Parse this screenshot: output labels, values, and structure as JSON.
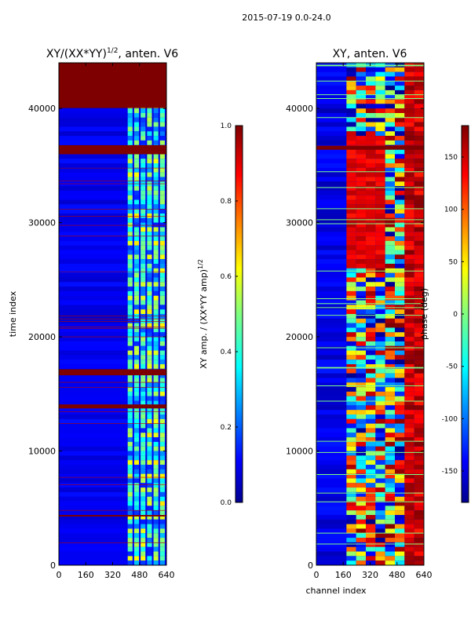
{
  "suptitle": "2015-07-19 0.0-24.0",
  "colors": {
    "low": "#00008f",
    "high": "#7f0000"
  },
  "chart_data": [
    {
      "type": "heatmap",
      "title_main": "XY/(XX*YY)",
      "title_sup": "1/2",
      "title_tail": ", anten. V6",
      "xlabel": "",
      "ylabel": "time index",
      "xlim": [
        0,
        640
      ],
      "ylim": [
        0,
        44000
      ],
      "xticks": [
        0,
        160,
        320,
        480,
        640
      ],
      "yticks": [
        0,
        10000,
        20000,
        30000,
        40000
      ],
      "colorbar": {
        "label_main": "XY amp. / (XX*YY amp)",
        "label_sup": "1/2",
        "range": [
          0.0,
          1.0
        ],
        "ticks": [
          "0.0",
          "0.2",
          "0.4",
          "0.6",
          "0.8",
          "1.0"
        ]
      }
    },
    {
      "type": "heatmap",
      "title_main": "XY, anten. V6",
      "xlabel": "channel index",
      "ylabel": "",
      "xlim": [
        0,
        640
      ],
      "ylim": [
        0,
        44000
      ],
      "xticks": [
        0,
        160,
        320,
        480,
        640
      ],
      "yticks": [
        0,
        10000,
        20000,
        30000,
        40000
      ],
      "colorbar": {
        "label_main": "phase (deg)",
        "range": [
          -180,
          180
        ],
        "ticks": [
          "-150",
          "-100",
          "-50",
          "0",
          "50",
          "100",
          "150"
        ]
      }
    }
  ]
}
